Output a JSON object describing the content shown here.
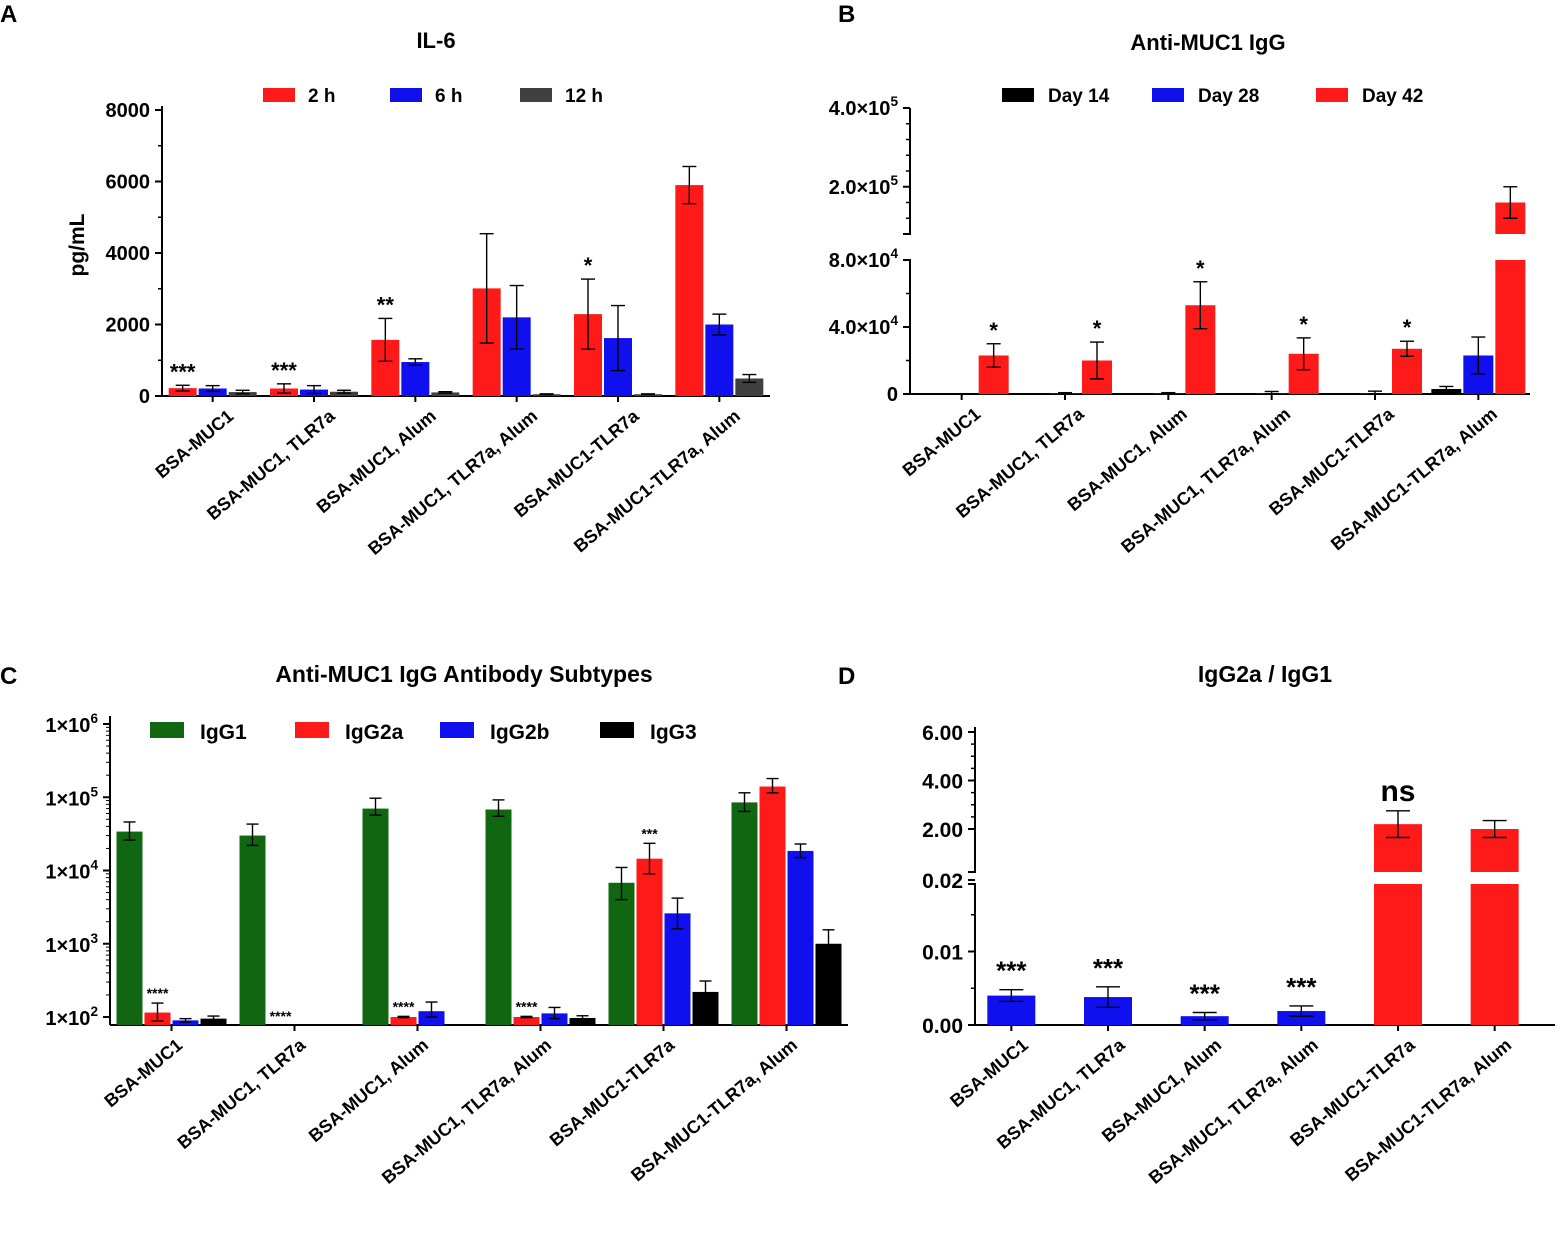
{
  "panels": {
    "A": {
      "letter": "A"
    },
    "B": {
      "letter": "B"
    },
    "C": {
      "letter": "C"
    },
    "D": {
      "letter": "D"
    }
  },
  "chart_data": [
    {
      "id": "A",
      "type": "bar",
      "title": "IL-6",
      "xlabel": "",
      "ylabel": "pg/mL",
      "ylim": [
        0,
        8000
      ],
      "yticks": [
        {
          "value": 0,
          "label": "0"
        },
        {
          "value": 2000,
          "label": "2000"
        },
        {
          "value": 4000,
          "label": "4000"
        },
        {
          "value": 6000,
          "label": "6000"
        },
        {
          "value": 8000,
          "label": "8000"
        }
      ],
      "categories": [
        "BSA-MUC1",
        "BSA-MUC1, TLR7a",
        "BSA-MUC1, Alum",
        "BSA-MUC1, TLR7a, Alum",
        "BSA-MUC1-TLR7a",
        "BSA-MUC1-TLR7a, Alum"
      ],
      "series": [
        {
          "name": "2 h",
          "color": "#ff1a1a",
          "values": [
            220,
            210,
            1570,
            3010,
            2290,
            5900
          ],
          "errors": [
            80,
            130,
            600,
            1530,
            980,
            520
          ]
        },
        {
          "name": "6 h",
          "color": "#1010ee",
          "values": [
            210,
            180,
            950,
            2200,
            1620,
            2000
          ],
          "errors": [
            80,
            110,
            90,
            890,
            910,
            290
          ]
        },
        {
          "name": "12 h",
          "color": "#404040",
          "values": [
            110,
            120,
            100,
            50,
            50,
            490
          ],
          "errors": [
            50,
            40,
            20,
            10,
            10,
            110
          ]
        }
      ],
      "annotations": [
        {
          "category": 0,
          "series": 0,
          "text": "***"
        },
        {
          "category": 1,
          "series": 0,
          "text": "***"
        },
        {
          "category": 2,
          "series": 0,
          "text": "**"
        },
        {
          "category": 4,
          "series": 0,
          "text": "*"
        }
      ]
    },
    {
      "id": "B",
      "type": "bar",
      "title": "Anti-MUC1 IgG",
      "xlabel": "",
      "ylabel": "",
      "axis_break": {
        "lower_range": [
          0,
          80000
        ],
        "upper_range": [
          80000,
          400000
        ]
      },
      "yticks": [
        {
          "value": 0,
          "mantissa": "0",
          "exponent": ""
        },
        {
          "value": 40000,
          "mantissa": "4.0×10",
          "exponent": "4"
        },
        {
          "value": 80000,
          "mantissa": "8.0×10",
          "exponent": "4"
        },
        {
          "value": 200000,
          "mantissa": "2.0×10",
          "exponent": "5"
        },
        {
          "value": 400000,
          "mantissa": "4.0×10",
          "exponent": "5"
        }
      ],
      "categories": [
        "BSA-MUC1",
        "BSA-MUC1, TLR7a",
        "BSA-MUC1, Alum",
        "BSA-MUC1, TLR7a, Alum",
        "BSA-MUC1-TLR7a",
        "BSA-MUC1-TLR7a, Alum"
      ],
      "series": [
        {
          "name": "Day 14",
          "color": "#000000",
          "values": [
            0,
            0,
            0,
            0,
            0,
            3000
          ],
          "errors": [
            0,
            0,
            0,
            0,
            0,
            1500
          ]
        },
        {
          "name": "Day 28",
          "color": "#1010ee",
          "values": [
            0,
            500,
            500,
            500,
            500,
            23000
          ],
          "errors": [
            0,
            300,
            300,
            1000,
            1200,
            11000
          ]
        },
        {
          "name": "Day 42",
          "color": "#ff1a1a",
          "values": [
            23000,
            20000,
            53000,
            24000,
            27000,
            160000
          ],
          "errors": [
            7000,
            11000,
            14000,
            9500,
            4500,
            40000
          ]
        }
      ],
      "annotations": [
        {
          "category": 0,
          "series": 2,
          "text": "*"
        },
        {
          "category": 1,
          "series": 2,
          "text": "*"
        },
        {
          "category": 2,
          "series": 2,
          "text": "*"
        },
        {
          "category": 3,
          "series": 2,
          "text": "*"
        },
        {
          "category": 4,
          "series": 2,
          "text": "*"
        }
      ]
    },
    {
      "id": "C",
      "type": "bar",
      "title": "Anti-MUC1 IgG Antibody Subtypes",
      "xlabel": "",
      "ylabel": "",
      "yscale": "log",
      "ylim": [
        80,
        1000000
      ],
      "yticks": [
        {
          "value": 100,
          "mantissa": "1×10",
          "exponent": "2"
        },
        {
          "value": 1000,
          "mantissa": "1×10",
          "exponent": "3"
        },
        {
          "value": 10000,
          "mantissa": "1×10",
          "exponent": "4"
        },
        {
          "value": 100000,
          "mantissa": "1×10",
          "exponent": "5"
        },
        {
          "value": 1000000,
          "mantissa": "1×10",
          "exponent": "6"
        }
      ],
      "categories": [
        "BSA-MUC1",
        "BSA-MUC1, TLR7a",
        "BSA-MUC1, Alum",
        "BSA-MUC1, TLR7a, Alum",
        "BSA-MUC1-TLR7a",
        "BSA-MUC1-TLR7a, Alum"
      ],
      "series": [
        {
          "name": "IgG1",
          "color": "#116611",
          "values": [
            34000,
            30000,
            70000,
            68000,
            6800,
            85000
          ],
          "errors_low": [
            26000,
            22000,
            57000,
            55000,
            4000,
            64000
          ],
          "errors_high": [
            46000,
            43000,
            97000,
            92000,
            11000,
            115000
          ]
        },
        {
          "name": "IgG2a",
          "color": "#ff1a1a",
          "values": [
            115,
            0,
            100,
            100,
            14500,
            140000
          ],
          "errors_low": [
            88,
            0,
            98,
            98,
            9000,
            115000
          ],
          "errors_high": [
            155,
            0,
            102,
            102,
            23500,
            180000
          ]
        },
        {
          "name": "IgG2b",
          "color": "#1010ee",
          "values": [
            90,
            0,
            120,
            112,
            2600,
            18500
          ],
          "errors_low": [
            85,
            0,
            100,
            95,
            1600,
            15000
          ],
          "errors_high": [
            95,
            0,
            160,
            135,
            4200,
            23000
          ]
        },
        {
          "name": "IgG3",
          "color": "#000000",
          "values": [
            95,
            0,
            0,
            97,
            220,
            1000
          ],
          "errors_low": [
            88,
            0,
            0,
            92,
            170,
            750
          ],
          "errors_high": [
            103,
            0,
            0,
            104,
            310,
            1550
          ]
        }
      ],
      "annotations": [
        {
          "category": 0,
          "series": 1,
          "text": "****"
        },
        {
          "category": 1,
          "series": 1,
          "text": "****"
        },
        {
          "category": 2,
          "series": 1,
          "text": "****"
        },
        {
          "category": 3,
          "series": 1,
          "text": "****"
        },
        {
          "category": 4,
          "series": 1,
          "text": "***"
        }
      ]
    },
    {
      "id": "D",
      "type": "bar",
      "title": "IgG2a / IgG1",
      "xlabel": "",
      "ylabel": "",
      "axis_break": {
        "lower_range": [
          0,
          0.02
        ],
        "upper_range": [
          0,
          6.0
        ]
      },
      "yticks": [
        {
          "value": 0,
          "label": "0.00"
        },
        {
          "value": 0.01,
          "label": "0.01"
        },
        {
          "value": 0.02,
          "label": "0.02"
        },
        {
          "value": 2.0,
          "label": "2.00"
        },
        {
          "value": 4.0,
          "label": "4.00"
        },
        {
          "value": 6.0,
          "label": "6.00"
        }
      ],
      "categories": [
        "BSA-MUC1",
        "BSA-MUC1, TLR7a",
        "BSA-MUC1, Alum",
        "BSA-MUC1, TLR7a, Alum",
        "BSA-MUC1-TLR7a",
        "BSA-MUC1-TLR7a, Alum"
      ],
      "series": [
        {
          "name": "IgG2a / IgG1",
          "colors": [
            "#1010ee",
            "#1010ee",
            "#1010ee",
            "#1010ee",
            "#ff1a1a",
            "#ff1a1a"
          ],
          "values": [
            0.004,
            0.0038,
            0.0012,
            0.0019,
            2.2,
            2.0
          ],
          "errors": [
            0.0008,
            0.0014,
            0.0005,
            0.0007,
            0.55,
            0.35
          ]
        }
      ],
      "annotations": [
        {
          "category": 0,
          "text": "***"
        },
        {
          "category": 1,
          "text": "***"
        },
        {
          "category": 2,
          "text": "***"
        },
        {
          "category": 3,
          "text": "***"
        },
        {
          "category": 4,
          "text": "ns"
        }
      ]
    }
  ]
}
